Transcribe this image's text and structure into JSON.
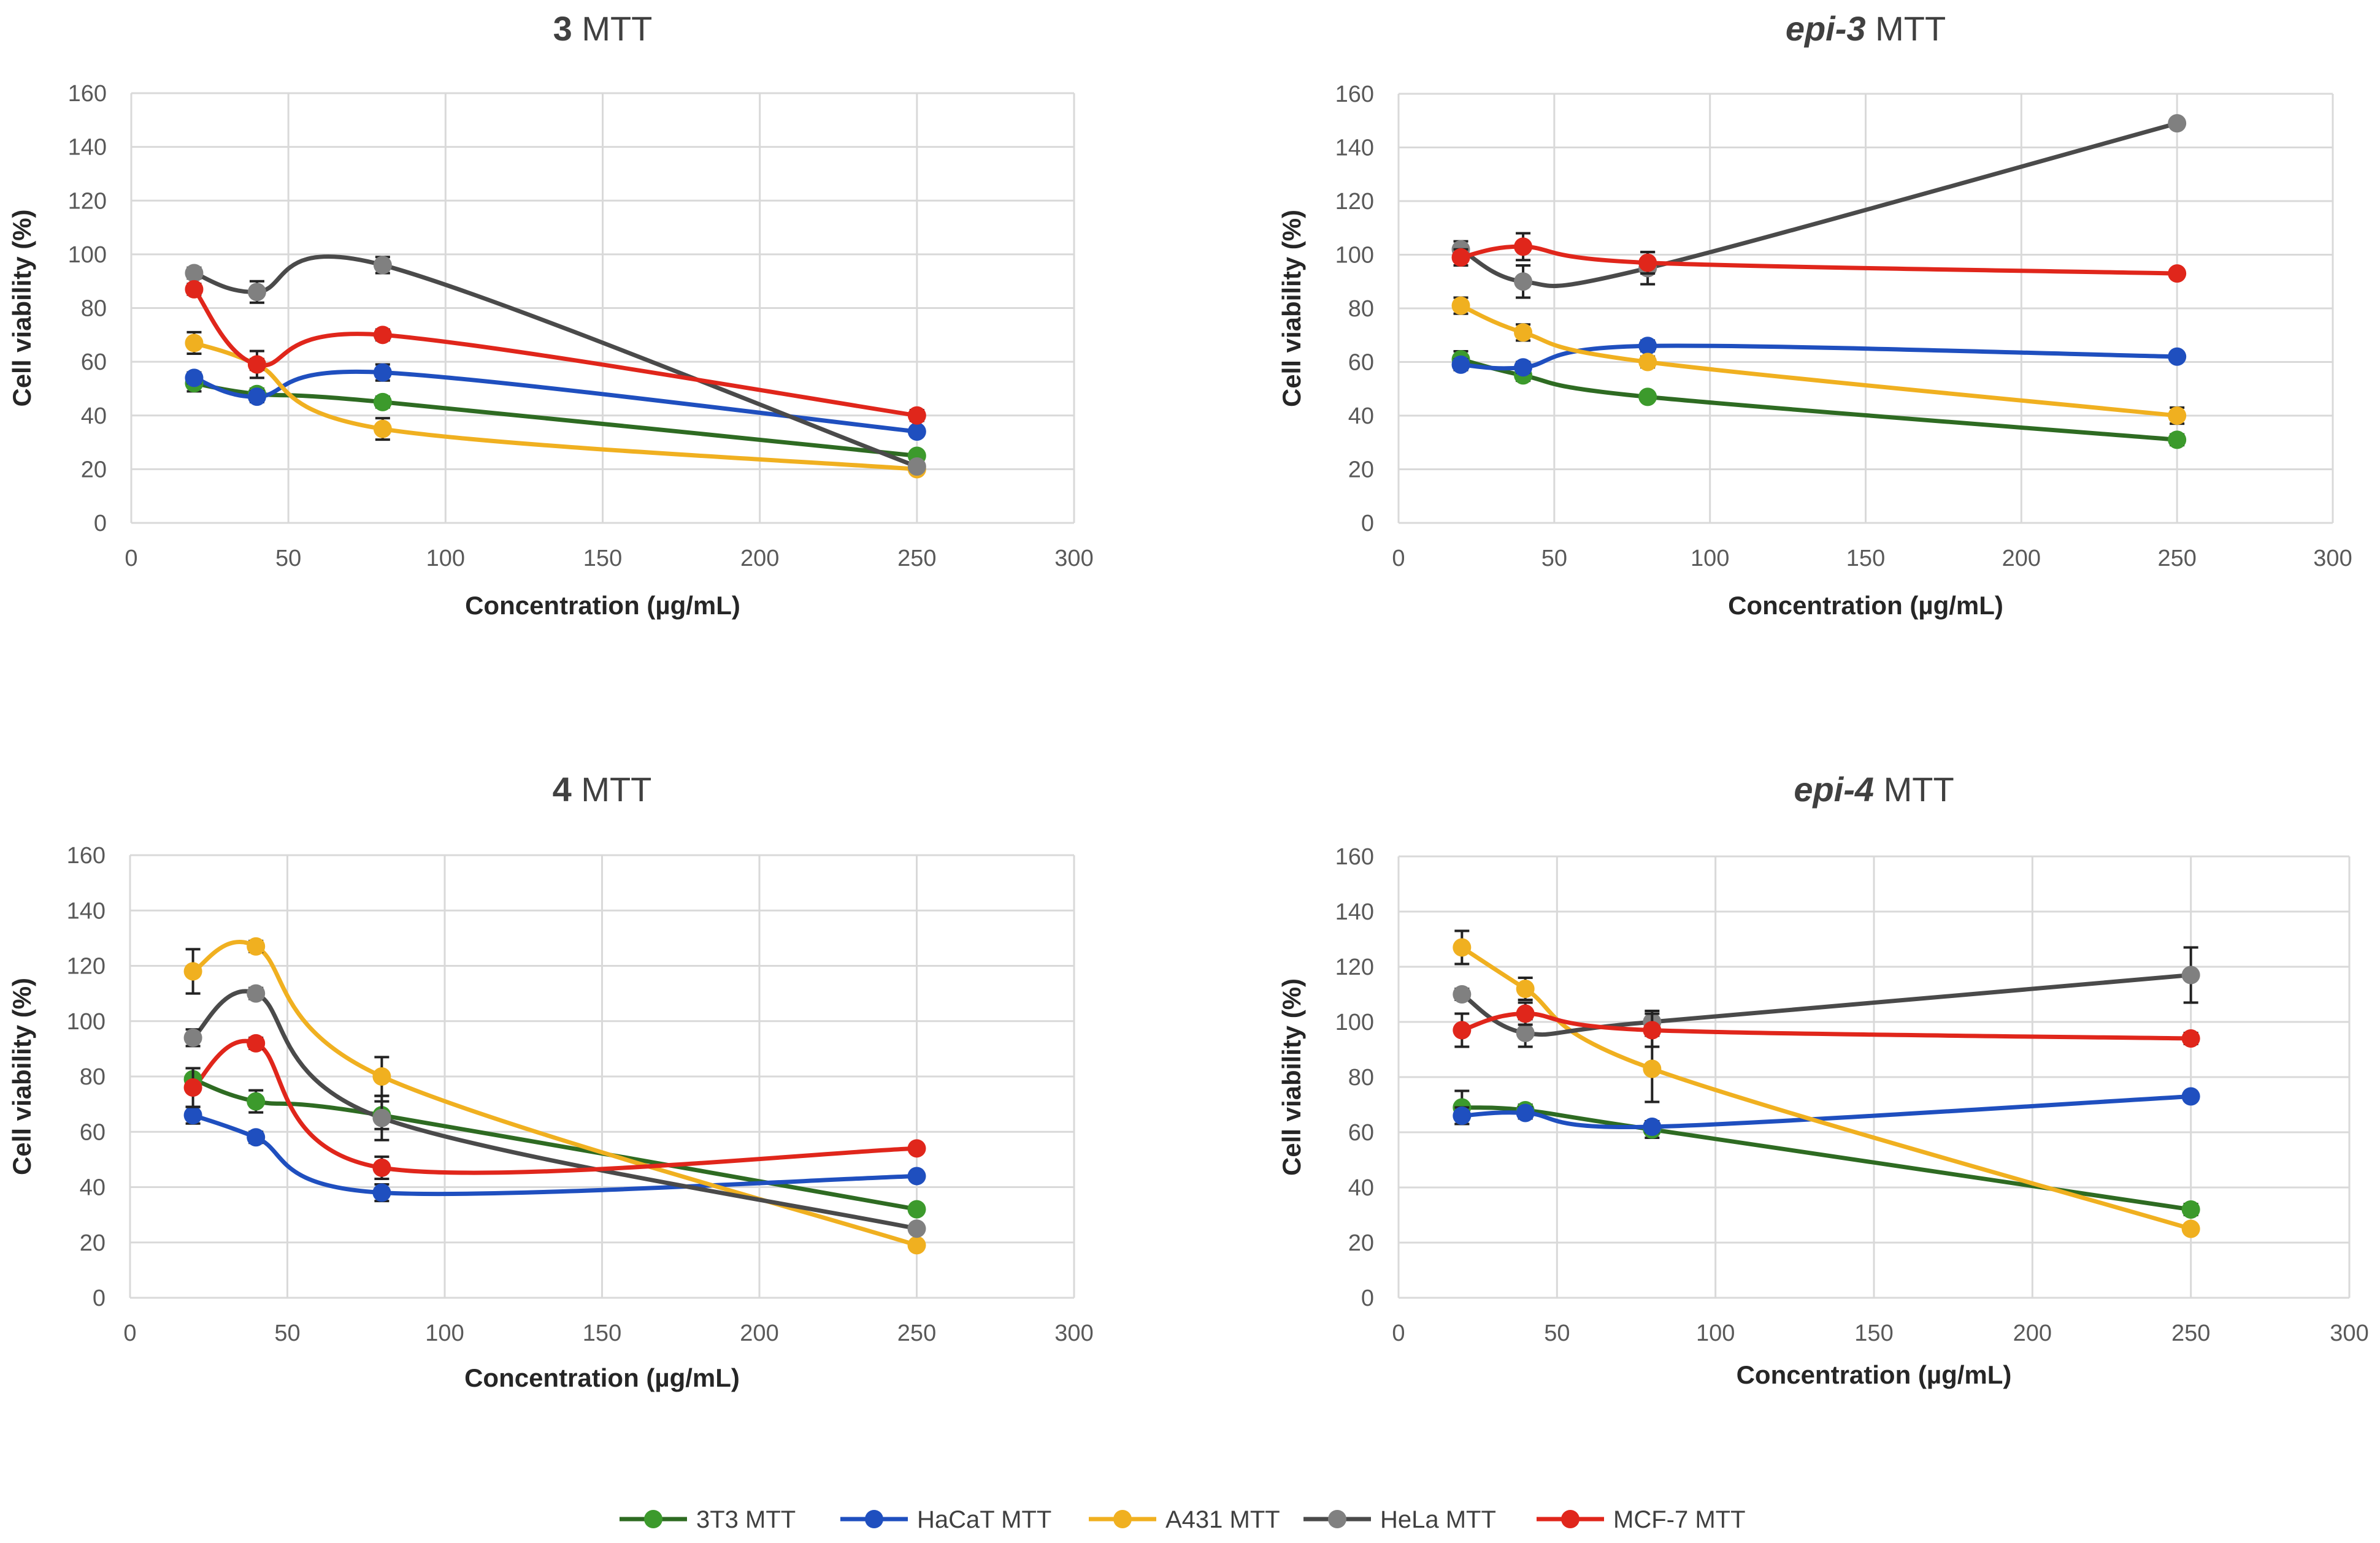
{
  "chart_data": [
    {
      "type": "line",
      "title": {
        "bold": "3",
        "italic": false,
        "rest": " MTT"
      },
      "xlabel": "Concentration (µg/mL)",
      "ylabel": "Cell viability (%)",
      "xlim": [
        0,
        300
      ],
      "ylim": [
        0,
        160
      ],
      "x_ticks": [
        0,
        50,
        100,
        150,
        200,
        250,
        300
      ],
      "y_ticks": [
        0,
        20,
        40,
        60,
        80,
        100,
        120,
        140,
        160
      ],
      "grid": true,
      "x": [
        20,
        40,
        80,
        250
      ],
      "series": [
        {
          "name": "3T3 MTT",
          "values": [
            52,
            48,
            45,
            25
          ],
          "errors": [
            3,
            2,
            2,
            1.5
          ]
        },
        {
          "name": "HaCaT MTT",
          "values": [
            54,
            47,
            56,
            34
          ],
          "errors": [
            2,
            2,
            3,
            1
          ]
        },
        {
          "name": "A431 MTT",
          "values": [
            67,
            59,
            35,
            20
          ],
          "errors": [
            4,
            2,
            4,
            1
          ]
        },
        {
          "name": "HeLa  MTT",
          "values": [
            93,
            86,
            96,
            21
          ],
          "errors": [
            2,
            4,
            3,
            1
          ]
        },
        {
          "name": "MCF-7  MTT",
          "values": [
            87,
            59,
            70,
            40
          ],
          "errors": [
            2,
            5,
            2,
            2
          ]
        }
      ]
    },
    {
      "type": "line",
      "title": {
        "bold": "epi-3",
        "italic": true,
        "rest": "  MTT"
      },
      "xlabel": "Concentration (µg/mL)",
      "ylabel": "Cell viability (%)",
      "xlim": [
        0,
        300
      ],
      "ylim": [
        0,
        160
      ],
      "x_ticks": [
        0,
        50,
        100,
        150,
        200,
        250,
        300
      ],
      "y_ticks": [
        0,
        20,
        40,
        60,
        80,
        100,
        120,
        140,
        160
      ],
      "grid": true,
      "x": [
        20,
        40,
        80,
        250
      ],
      "series": [
        {
          "name": "3T3 MTT",
          "values": [
            61,
            55,
            47,
            31
          ],
          "errors": [
            3,
            2,
            1.5,
            2
          ]
        },
        {
          "name": "HaCaT MTT",
          "values": [
            59,
            58,
            66,
            62
          ],
          "errors": [
            2,
            2,
            2,
            1
          ]
        },
        {
          "name": "A431 MTT",
          "values": [
            81,
            71,
            60,
            40
          ],
          "errors": [
            3,
            3,
            2,
            3
          ]
        },
        {
          "name": "HeLa  MTT",
          "values": [
            102,
            90,
            95,
            149
          ],
          "errors": [
            3,
            6,
            6,
            1.5
          ]
        },
        {
          "name": "MCF-7  MTT",
          "values": [
            99,
            103,
            97,
            93
          ],
          "errors": [
            3,
            5,
            4,
            1
          ]
        }
      ]
    },
    {
      "type": "line",
      "title": {
        "bold": "4",
        "italic": false,
        "rest": " MTT"
      },
      "xlabel": "Concentration (µg/mL)",
      "ylabel": "Cell viability (%)",
      "xlim": [
        0,
        300
      ],
      "ylim": [
        0,
        160
      ],
      "x_ticks": [
        0,
        50,
        100,
        150,
        200,
        250,
        300
      ],
      "y_ticks": [
        0,
        20,
        40,
        60,
        80,
        100,
        120,
        140,
        160
      ],
      "grid": true,
      "x": [
        20,
        40,
        80,
        250
      ],
      "series": [
        {
          "name": "3T3 MTT",
          "values": [
            79,
            71,
            66,
            32
          ],
          "errors": [
            4,
            4,
            5,
            1
          ]
        },
        {
          "name": "HaCaT MTT",
          "values": [
            66,
            58,
            38,
            44
          ],
          "errors": [
            3,
            2,
            3,
            1
          ]
        },
        {
          "name": "A431 MTT",
          "values": [
            118,
            127,
            80,
            19
          ],
          "errors": [
            8,
            2,
            7,
            1
          ]
        },
        {
          "name": "HeLa  MTT",
          "values": [
            94,
            110,
            65,
            25
          ],
          "errors": [
            3,
            2,
            8,
            1
          ]
        },
        {
          "name": "MCF-7  MTT",
          "values": [
            76,
            92,
            47,
            54
          ],
          "errors": [
            7,
            2,
            4,
            1
          ]
        }
      ]
    },
    {
      "type": "line",
      "title": {
        "bold": "epi-4",
        "italic": true,
        "rest": "  MTT"
      },
      "xlabel": "Concentration (µg/mL)",
      "ylabel": "Cell viability (%)",
      "xlim": [
        0,
        300
      ],
      "ylim": [
        0,
        160
      ],
      "x_ticks": [
        0,
        50,
        100,
        150,
        200,
        250,
        300
      ],
      "y_ticks": [
        0,
        20,
        40,
        60,
        80,
        100,
        120,
        140,
        160
      ],
      "grid": true,
      "x": [
        20,
        40,
        80,
        250
      ],
      "series": [
        {
          "name": "3T3 MTT",
          "values": [
            69,
            68,
            61,
            32
          ],
          "errors": [
            6,
            2,
            3,
            2
          ]
        },
        {
          "name": "HaCaT MTT",
          "values": [
            66,
            67,
            62,
            73
          ],
          "errors": [
            3,
            2,
            2,
            1
          ]
        },
        {
          "name": "A431 MTT",
          "values": [
            127,
            112,
            83,
            25
          ],
          "errors": [
            6,
            4,
            12,
            1
          ]
        },
        {
          "name": "HeLa  MTT",
          "values": [
            110,
            96,
            100,
            117
          ],
          "errors": [
            2,
            5,
            4,
            10
          ]
        },
        {
          "name": "MCF-7  MTT",
          "values": [
            97,
            103,
            97,
            94
          ],
          "errors": [
            6,
            4,
            6,
            2
          ]
        }
      ]
    }
  ],
  "legend": {
    "position": "bottom-center",
    "items": [
      {
        "name": "3T3 MTT",
        "color": "#2E6B22"
      },
      {
        "name": "HaCaT MTT",
        "color": "#1F4FBF"
      },
      {
        "name": "A431 MTT",
        "color": "#F0B020"
      },
      {
        "name": "HeLa  MTT",
        "color": "#4A4A4A"
      },
      {
        "name": "MCF-7  MTT",
        "color": "#E0261B"
      }
    ]
  },
  "colors": {
    "3T3 MTT": "#2E6B22",
    "HaCaT MTT": "#1F4FBF",
    "A431 MTT": "#F0B020",
    "HeLa  MTT": "#4A4A4A",
    "MCF-7  MTT": "#E0261B",
    "marker_3T3": "#3C9A2C",
    "marker_HeLa": "#808080",
    "grid": "#D9D9D9",
    "error_bar": "#222222"
  }
}
